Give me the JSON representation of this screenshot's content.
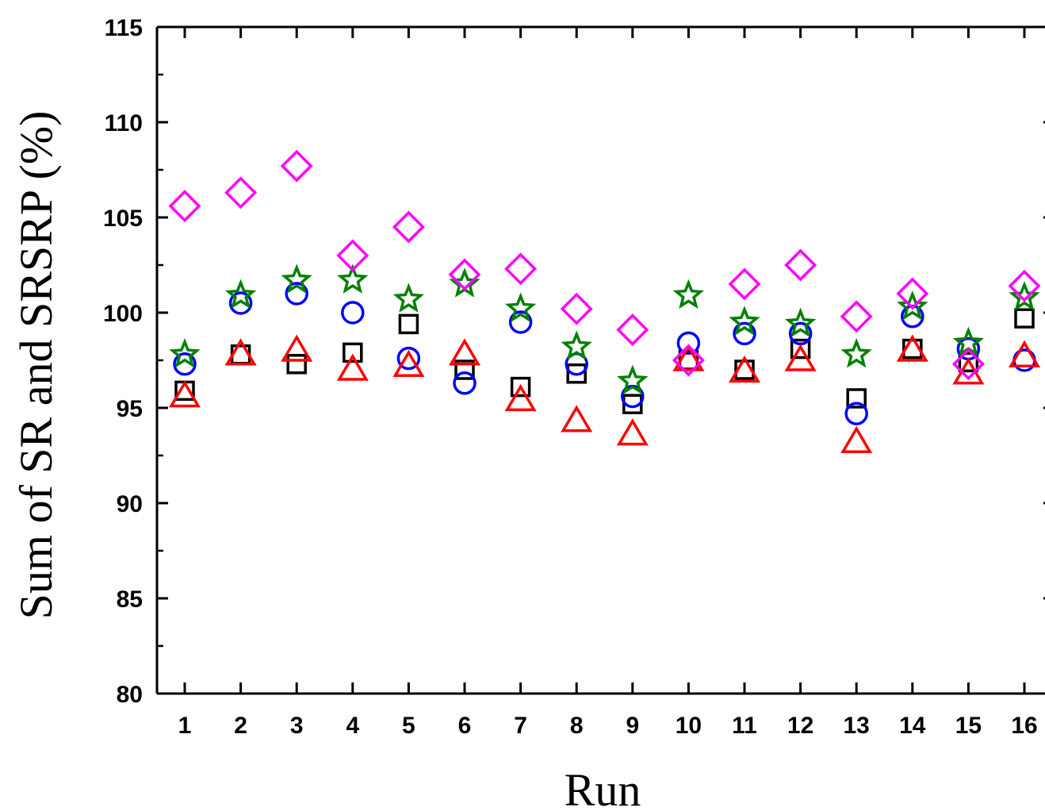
{
  "chart_data": {
    "type": "scatter",
    "title": "",
    "xlabel": "Run",
    "ylabel": "Sum of SR and SRSRP (%)",
    "xlim": [
      0.5,
      16.5
    ],
    "ylim": [
      80,
      115
    ],
    "x_ticks": [
      "1",
      "2",
      "3",
      "4",
      "5",
      "6",
      "7",
      "8",
      "9",
      "10",
      "11",
      "12",
      "13",
      "14",
      "15",
      "16"
    ],
    "y_ticks": [
      "80",
      "85",
      "90",
      "95",
      "100",
      "105",
      "110",
      "115"
    ],
    "grid": false,
    "legend": "none",
    "x": [
      1,
      2,
      3,
      4,
      5,
      6,
      7,
      8,
      9,
      10,
      11,
      12,
      13,
      14,
      15,
      16
    ],
    "series": [
      {
        "marker": "square",
        "color": "#000000",
        "values": [
          95.9,
          97.8,
          97.3,
          97.9,
          99.4,
          97.0,
          96.1,
          96.8,
          95.2,
          97.5,
          97.0,
          98.1,
          95.5,
          98.1,
          97.4,
          99.7
        ]
      },
      {
        "marker": "circle",
        "color": "#0000ff",
        "values": [
          97.3,
          100.5,
          101.0,
          100.0,
          97.6,
          96.3,
          99.5,
          97.3,
          95.6,
          98.4,
          98.9,
          98.9,
          94.7,
          99.8,
          98.1,
          97.5
        ]
      },
      {
        "marker": "triangle",
        "color": "#ff0000",
        "values": [
          95.6,
          97.8,
          98.0,
          97.0,
          97.2,
          97.8,
          95.4,
          94.3,
          93.6,
          97.5,
          96.9,
          97.5,
          93.2,
          98.0,
          96.8,
          97.7
        ]
      },
      {
        "marker": "star",
        "color": "#008000",
        "values": [
          97.8,
          100.9,
          101.7,
          101.7,
          100.7,
          101.5,
          100.2,
          98.2,
          96.4,
          100.9,
          99.5,
          99.4,
          97.8,
          100.3,
          98.4,
          100.8
        ]
      },
      {
        "marker": "diamond",
        "color": "#ff00ff",
        "values": [
          105.6,
          106.3,
          107.7,
          103.0,
          104.5,
          102.0,
          102.3,
          100.2,
          99.1,
          97.5,
          101.5,
          102.5,
          99.8,
          101.0,
          97.3,
          101.4
        ]
      }
    ]
  }
}
